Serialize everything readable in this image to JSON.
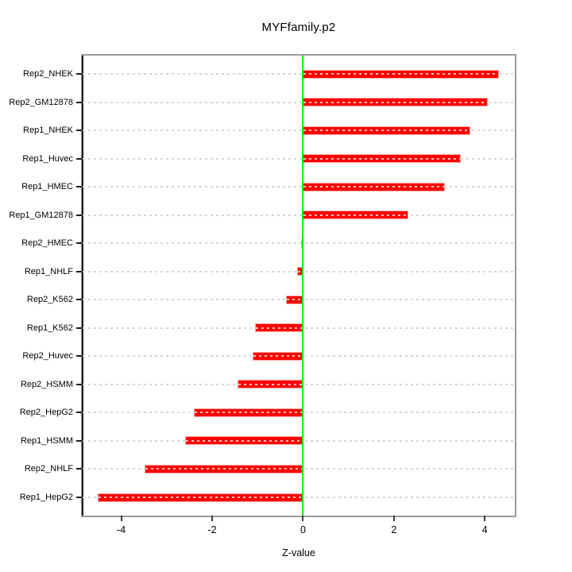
{
  "chart_data": {
    "type": "bar",
    "orientation": "horizontal",
    "title": "MYFfamily.p2",
    "xlabel": "Z-value",
    "categories": [
      "Rep2_NHEK",
      "Rep2_GM12878",
      "Rep1_NHEK",
      "Rep1_Huvec",
      "Rep1_HMEC",
      "Rep1_GM12878",
      "Rep2_HMEC",
      "Rep1_NHLF",
      "Rep2_K562",
      "Rep1_K562",
      "Rep2_Huvec",
      "Rep2_HSMM",
      "Rep2_HepG2",
      "Rep1_HSMM",
      "Rep2_NHLF",
      "Rep1_HepG2"
    ],
    "values": [
      4.31,
      4.07,
      3.68,
      3.48,
      3.12,
      2.32,
      -0.04,
      -0.13,
      -0.38,
      -1.06,
      -1.11,
      -1.44,
      -2.4,
      -2.59,
      -3.49,
      -4.52
    ],
    "xlim": [
      -4.85,
      4.66
    ],
    "xticks": [
      -4,
      -2,
      0,
      2,
      4
    ],
    "xtick_labels": [
      "-4",
      "-2",
      "0",
      "2",
      "4"
    ],
    "grid": "dotted horizontal per-category",
    "legend": "none",
    "colors": {
      "bar": "#ff0000",
      "zero_line": "#00ee00",
      "gridline": "#d6d6d6",
      "box_border": "#9b9b9b",
      "axis_line": "#1c1c1c"
    }
  }
}
